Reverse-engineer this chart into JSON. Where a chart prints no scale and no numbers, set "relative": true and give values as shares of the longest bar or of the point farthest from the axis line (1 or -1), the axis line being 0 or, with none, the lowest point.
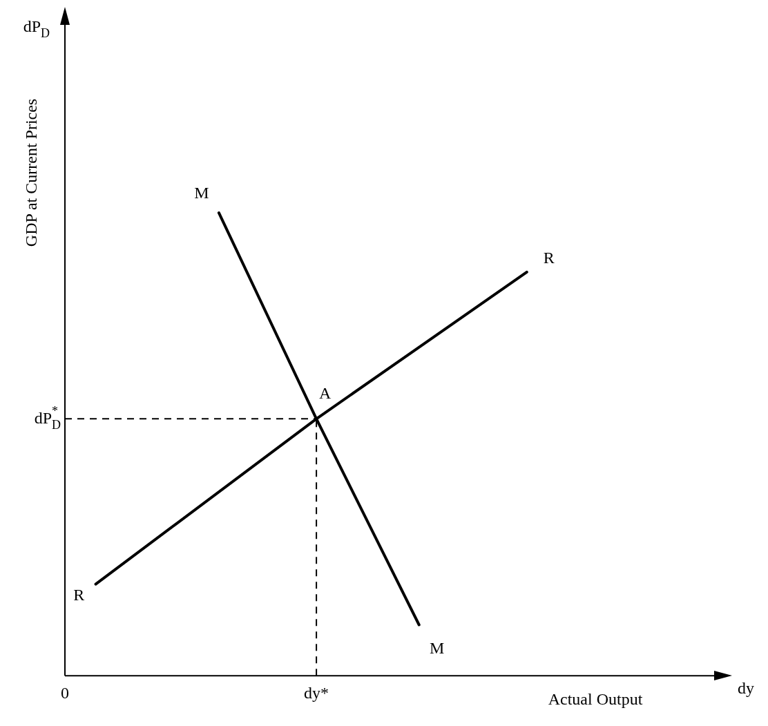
{
  "chart_data": {
    "type": "line",
    "relative": true,
    "xlabel": "Actual Output",
    "ylabel": "GDP at Current Prices",
    "legend": false,
    "grid": false,
    "marker": "none",
    "line_style": "solid",
    "categories": [
      "0",
      null,
      null,
      null,
      null,
      null,
      null,
      null,
      null,
      null,
      null,
      null,
      null,
      null,
      null,
      null,
      null,
      null,
      null,
      null,
      null,
      null,
      null,
      null,
      null,
      null,
      null,
      null,
      null,
      null,
      null,
      null,
      null,
      null,
      null,
      null,
      null,
      null,
      null,
      null,
      null,
      null,
      null,
      null,
      null,
      null,
      null,
      null,
      null,
      "dy*",
      null,
      null,
      null,
      null,
      null,
      null,
      null,
      null,
      null,
      null,
      null,
      null,
      null,
      null,
      null,
      null,
      null,
      null,
      null,
      null,
      null,
      null,
      null,
      null,
      null,
      null,
      null,
      null,
      null,
      null,
      null,
      null,
      null,
      null,
      null,
      null,
      null,
      null,
      null,
      null,
      null,
      null,
      null,
      null,
      null,
      null,
      null,
      null,
      null,
      null,
      null,
      null,
      null,
      null,
      null,
      null,
      null,
      null,
      null,
      null,
      null,
      null,
      null,
      null,
      null,
      null,
      null,
      null,
      null,
      null,
      null,
      null,
      null,
      null,
      null,
      null,
      null,
      null,
      null,
      null,
      null
    ],
    "series": [
      {
        "name": "M",
        "color": "#000000",
        "values": [
          null,
          null,
          null,
          null,
          null,
          null,
          null,
          null,
          null,
          null,
          null,
          null,
          null,
          null,
          null,
          null,
          null,
          null,
          null,
          null,
          null,
          null,
          null,
          null,
          null,
          null,
          null,
          null,
          null,
          null,
          1,
          null,
          null,
          null,
          null,
          null,
          null,
          null,
          null,
          null,
          null,
          null,
          null,
          null,
          null,
          null,
          null,
          null,
          null,
          0.555,
          null,
          null,
          null,
          null,
          null,
          null,
          null,
          null,
          null,
          null,
          null,
          null,
          null,
          null,
          null,
          null,
          null,
          null,
          null,
          0.11,
          null,
          null,
          null,
          null,
          null,
          null,
          null,
          null,
          null,
          null,
          null,
          null,
          null,
          null,
          null,
          null,
          null,
          null,
          null,
          null,
          null,
          null,
          null,
          null,
          null,
          null,
          null,
          null,
          null,
          null,
          null,
          null,
          null,
          null,
          null,
          null,
          null,
          null,
          null,
          null,
          null,
          null,
          null,
          null,
          null,
          null,
          null,
          null,
          null,
          null,
          null,
          null,
          null,
          null,
          null,
          null,
          null,
          null,
          null,
          null,
          null
        ]
      },
      {
        "name": "R",
        "color": "#000000",
        "values": [
          null,
          null,
          null,
          null,
          null,
          null,
          0.198,
          null,
          null,
          null,
          null,
          null,
          null,
          null,
          null,
          null,
          null,
          null,
          null,
          null,
          null,
          null,
          null,
          null,
          null,
          null,
          null,
          null,
          null,
          null,
          null,
          null,
          null,
          null,
          null,
          null,
          null,
          null,
          null,
          null,
          null,
          null,
          null,
          null,
          null,
          null,
          null,
          null,
          null,
          0.555,
          null,
          null,
          null,
          null,
          null,
          null,
          null,
          null,
          null,
          null,
          null,
          null,
          null,
          null,
          null,
          null,
          null,
          null,
          null,
          null,
          null,
          null,
          null,
          null,
          null,
          null,
          null,
          null,
          null,
          null,
          null,
          null,
          null,
          null,
          null,
          null,
          null,
          null,
          null,
          null,
          0.872,
          null,
          null,
          null,
          null,
          null,
          null,
          null,
          null,
          null,
          null,
          null,
          null,
          null,
          null,
          null,
          null,
          null,
          null,
          null,
          null,
          null,
          null,
          null,
          null,
          null,
          null,
          null,
          null,
          null,
          null,
          null,
          null,
          null,
          null,
          null,
          null,
          null,
          null,
          null,
          null
        ]
      }
    ],
    "ref_lines": [
      {
        "axis": "x",
        "value": "dy*",
        "line_style": "dashed",
        "color": "#000000"
      },
      {
        "axis": "y",
        "value": 0.555,
        "label": "dP$^{*}$$_{D}$",
        "line_style": "dashed",
        "color": "#000000"
      }
    ],
    "annotations": [
      "dy",
      "dP$_{D}$",
      {
        "text": "A",
        "x": "dy*",
        "y": 0.555
      }
    ]
  }
}
